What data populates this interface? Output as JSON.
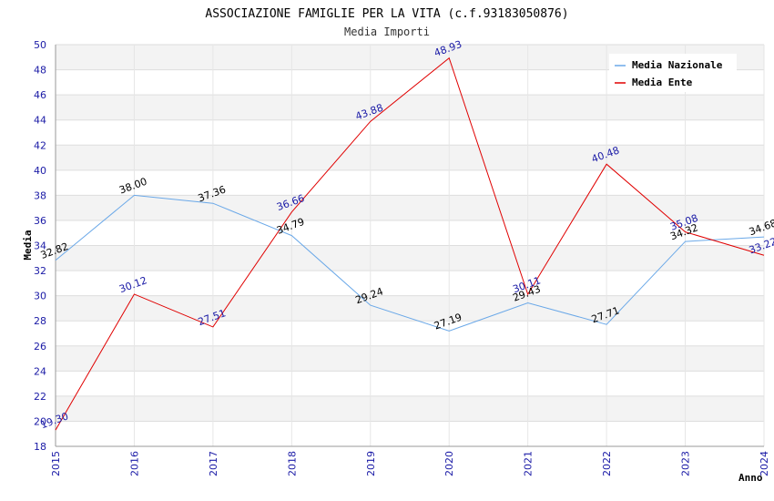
{
  "chart_data": {
    "type": "line",
    "title": "ASSOCIAZIONE FAMIGLIE PER LA VITA (c.f.93183050876)",
    "subtitle": "Media Importi",
    "xlabel": "Anno",
    "ylabel": "Media",
    "x": [
      "2015",
      "2016",
      "2017",
      "2018",
      "2019",
      "2020",
      "2021",
      "2022",
      "2023",
      "2024"
    ],
    "ylim": [
      18,
      50
    ],
    "yticks": [
      "18",
      "20",
      "22",
      "24",
      "26",
      "28",
      "30",
      "32",
      "34",
      "36",
      "38",
      "40",
      "42",
      "44",
      "46",
      "48",
      "50"
    ],
    "grid": true,
    "legend_position": "top-right",
    "series": [
      {
        "name": "Media Nazionale",
        "color": "#6aa8e8",
        "label_color": "#000000",
        "values": [
          32.82,
          38.0,
          37.36,
          34.79,
          29.24,
          27.19,
          29.43,
          27.71,
          34.32,
          34.68
        ],
        "labels": [
          "32.82",
          "38.00",
          "37.36",
          "34.79",
          "29.24",
          "27.19",
          "29.43",
          "27.71",
          "34.32",
          "34.68"
        ]
      },
      {
        "name": "Media Ente",
        "color": "#e00000",
        "label_color": "#1a1aa6",
        "values": [
          19.3,
          30.12,
          27.51,
          36.66,
          43.88,
          48.93,
          30.11,
          40.48,
          35.08,
          33.22
        ],
        "labels": [
          "19.30",
          "30.12",
          "27.51",
          "36.66",
          "43.88",
          "48.93",
          "30.11",
          "40.48",
          "35.08",
          "33.22"
        ]
      }
    ]
  }
}
